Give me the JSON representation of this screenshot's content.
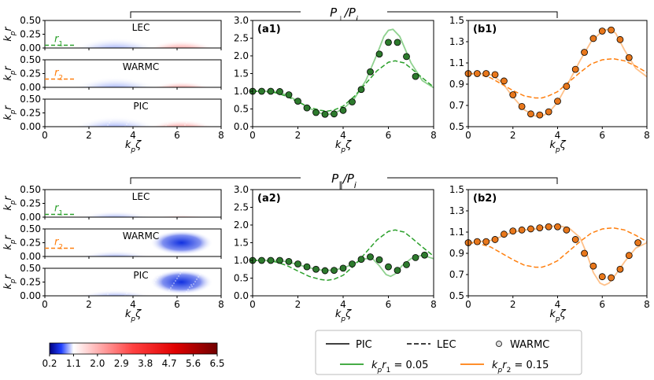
{
  "header_top": {
    "main": "P",
    "sub": "⊥",
    "den": "/P",
    "densub": "i"
  },
  "header_bottom": {
    "main": "P",
    "sub": "∥",
    "den": "/P",
    "densub": "i"
  },
  "heatmap_labels": {
    "lec": "LEC",
    "warmc": "WARMC",
    "pic": "PIC",
    "r1": "r",
    "r1sub": "1",
    "r2": "r",
    "r2sub": "2",
    "ylabel_main": "k",
    "ylabel_sub": "p",
    "ylabel_var": "r",
    "xlabel_main": "k",
    "xlabel_sub": "p",
    "xlabel_var": "ζ"
  },
  "colorbar": {
    "ticks": [
      "0.2",
      "1.1",
      "2.0",
      "2.9",
      "3.8",
      "4.7",
      "5.6",
      "6.5"
    ],
    "min": 0.2,
    "max": 6.5,
    "white_at": 1.1
  },
  "legend": {
    "pic": "PIC",
    "lec": "LEC",
    "warmc": "WARMC",
    "r1_label": "r",
    "r1_sub": "1",
    "r1_value": " = 0.05",
    "r2_label": "r",
    "r2_sub": "2",
    "r2_value": " = 0.15",
    "kp": "k",
    "kp_sub": "p"
  },
  "colors": {
    "green": "#2ca02c",
    "green_light": "#8fd18f",
    "orange": "#ff7f0e",
    "orange_light": "#ffc18a",
    "marker_green": "#2d7a2d",
    "marker_orange": "#e8771b"
  },
  "chart_data": [
    {
      "id": "a1",
      "type": "line",
      "title": "(a1)",
      "xlabel": "kpζ",
      "ylabel": "",
      "xlim": [
        0,
        8
      ],
      "ylim": [
        0.0,
        3.0
      ],
      "xticks": [
        0,
        2,
        4,
        6,
        8
      ],
      "yticks": [
        0.0,
        0.5,
        1.0,
        1.5,
        2.0,
        2.5,
        3.0
      ],
      "ytick_labels": [
        "0.0",
        "0.5",
        "1.0",
        "1.5",
        "2.0",
        "2.5",
        "3.0"
      ],
      "series": [
        {
          "name": "PIC",
          "style": "solid",
          "color": "#8fd18f",
          "x": [
            0,
            0.5,
            1,
            1.5,
            2,
            2.5,
            3,
            3.3,
            3.6,
            4,
            4.5,
            5,
            5.5,
            5.8,
            6,
            6.2,
            6.5,
            7,
            7.5,
            8
          ],
          "y": [
            1.0,
            1.0,
            0.99,
            0.9,
            0.72,
            0.52,
            0.38,
            0.34,
            0.38,
            0.5,
            0.8,
            1.3,
            2.05,
            2.55,
            2.72,
            2.75,
            2.55,
            1.8,
            1.3,
            1.1
          ]
        },
        {
          "name": "LEC",
          "style": "dashed",
          "color": "#2ca02c",
          "x": [
            0,
            0.5,
            1,
            1.5,
            2,
            2.5,
            3,
            3.3,
            3.6,
            4,
            4.5,
            5,
            5.5,
            6,
            6.3,
            6.7,
            7,
            7.5,
            8
          ],
          "y": [
            1.0,
            0.99,
            0.96,
            0.86,
            0.7,
            0.55,
            0.46,
            0.44,
            0.47,
            0.58,
            0.86,
            1.22,
            1.58,
            1.82,
            1.86,
            1.8,
            1.65,
            1.38,
            1.12
          ]
        },
        {
          "name": "WARMC",
          "style": "markers",
          "color": "#2d7a2d",
          "x": [
            0,
            0.4,
            0.8,
            1.2,
            1.6,
            2.0,
            2.4,
            2.8,
            3.2,
            3.6,
            4.0,
            4.4,
            4.8,
            5.2,
            5.6,
            6.0,
            6.4,
            6.8,
            7.2
          ],
          "y": [
            1.0,
            1.0,
            1.0,
            0.99,
            0.9,
            0.72,
            0.53,
            0.4,
            0.35,
            0.36,
            0.46,
            0.7,
            1.05,
            1.55,
            2.05,
            2.38,
            2.38,
            1.98,
            1.42
          ]
        }
      ]
    },
    {
      "id": "b1",
      "type": "line",
      "title": "(b1)",
      "xlabel": "kpζ",
      "ylabel": "",
      "xlim": [
        0,
        8
      ],
      "ylim": [
        0.5,
        1.5
      ],
      "xticks": [
        0,
        2,
        4,
        6,
        8
      ],
      "yticks": [
        0.5,
        0.7,
        0.9,
        1.1,
        1.3,
        1.5
      ],
      "ytick_labels": [
        "0.5",
        "0.7",
        "0.9",
        "1.1",
        "1.3",
        "1.5"
      ],
      "series": [
        {
          "name": "PIC",
          "style": "solid",
          "color": "#ffc18a",
          "x": [
            0,
            0.5,
            1,
            1.5,
            2,
            2.5,
            3,
            3.3,
            3.6,
            4,
            4.5,
            5,
            5.5,
            6,
            6.3,
            6.6,
            7,
            7.5,
            8
          ],
          "y": [
            1.0,
            1.0,
            0.99,
            0.92,
            0.78,
            0.66,
            0.6,
            0.6,
            0.63,
            0.73,
            0.92,
            1.12,
            1.3,
            1.4,
            1.42,
            1.38,
            1.22,
            1.05,
            0.97
          ]
        },
        {
          "name": "LEC",
          "style": "dashed",
          "color": "#ff7f0e",
          "x": [
            0,
            0.5,
            1,
            1.5,
            2,
            2.5,
            3,
            3.3,
            3.6,
            4,
            4.5,
            5,
            5.5,
            6,
            6.5,
            7,
            7.5,
            8
          ],
          "y": [
            1.0,
            0.99,
            0.96,
            0.9,
            0.84,
            0.79,
            0.77,
            0.77,
            0.79,
            0.83,
            0.92,
            1.01,
            1.09,
            1.13,
            1.14,
            1.12,
            1.07,
            1.01
          ]
        },
        {
          "name": "WARMC",
          "style": "markers",
          "color": "#e8771b",
          "x": [
            0,
            0.4,
            0.8,
            1.2,
            1.6,
            2.0,
            2.4,
            2.8,
            3.2,
            3.6,
            4.0,
            4.4,
            4.8,
            5.2,
            5.6,
            6.0,
            6.4,
            6.8,
            7.2
          ],
          "y": [
            1.0,
            1.0,
            1.0,
            0.99,
            0.93,
            0.8,
            0.69,
            0.62,
            0.61,
            0.64,
            0.74,
            0.88,
            1.04,
            1.2,
            1.33,
            1.4,
            1.41,
            1.32,
            1.15
          ]
        }
      ]
    },
    {
      "id": "a2",
      "type": "line",
      "title": "(a2)",
      "xlabel": "kpζ",
      "ylabel": "",
      "xlim": [
        0,
        8
      ],
      "ylim": [
        0.0,
        3.0
      ],
      "xticks": [
        0,
        2,
        4,
        6,
        8
      ],
      "yticks": [
        0.0,
        0.5,
        1.0,
        1.5,
        2.0,
        2.5,
        3.0
      ],
      "ytick_labels": [
        "0.0",
        "0.5",
        "1.0",
        "1.5",
        "2.0",
        "2.5",
        "3.0"
      ],
      "series": [
        {
          "name": "PIC",
          "style": "solid",
          "color": "#8fd18f",
          "x": [
            0,
            0.5,
            1,
            1.5,
            2,
            2.5,
            3,
            3.5,
            4,
            4.5,
            5,
            5.3,
            5.6,
            5.9,
            6.1,
            6.3,
            6.6,
            7,
            7.5,
            8
          ],
          "y": [
            1.0,
            1.0,
            1.0,
            0.97,
            0.88,
            0.79,
            0.73,
            0.72,
            0.78,
            0.92,
            1.05,
            1.05,
            0.85,
            0.6,
            0.55,
            0.62,
            0.85,
            1.05,
            1.15,
            1.05
          ]
        },
        {
          "name": "LEC",
          "style": "dashed",
          "color": "#2ca02c",
          "x": [
            0,
            0.5,
            1,
            1.5,
            2,
            2.5,
            3,
            3.3,
            3.6,
            4,
            4.5,
            5,
            5.5,
            6,
            6.3,
            6.7,
            7,
            7.5,
            8
          ],
          "y": [
            1.0,
            0.99,
            0.96,
            0.86,
            0.7,
            0.55,
            0.46,
            0.44,
            0.47,
            0.58,
            0.86,
            1.22,
            1.58,
            1.82,
            1.86,
            1.8,
            1.65,
            1.38,
            1.12
          ]
        },
        {
          "name": "WARMC",
          "style": "markers",
          "color": "#2d7a2d",
          "x": [
            0,
            0.4,
            0.8,
            1.2,
            1.6,
            2.0,
            2.4,
            2.8,
            3.2,
            3.6,
            4.0,
            4.4,
            4.8,
            5.2,
            5.6,
            6.0,
            6.4,
            6.8,
            7.2,
            7.6
          ],
          "y": [
            1.0,
            1.0,
            1.0,
            1.0,
            0.97,
            0.9,
            0.82,
            0.75,
            0.71,
            0.72,
            0.78,
            0.9,
            1.03,
            1.1,
            1.02,
            0.82,
            0.72,
            0.88,
            1.08,
            1.15
          ]
        }
      ]
    },
    {
      "id": "b2",
      "type": "line",
      "title": "(b2)",
      "xlabel": "kpζ",
      "ylabel": "",
      "xlim": [
        0,
        8
      ],
      "ylim": [
        0.5,
        1.5
      ],
      "xticks": [
        0,
        2,
        4,
        6,
        8
      ],
      "yticks": [
        0.5,
        0.7,
        0.9,
        1.1,
        1.3,
        1.5
      ],
      "ytick_labels": [
        "0.5",
        "0.7",
        "0.9",
        "1.1",
        "1.3",
        "1.5"
      ],
      "series": [
        {
          "name": "PIC",
          "style": "solid",
          "color": "#ffc18a",
          "x": [
            0,
            0.5,
            1,
            1.5,
            2,
            2.5,
            3,
            3.5,
            4,
            4.5,
            5,
            5.3,
            5.6,
            5.9,
            6.1,
            6.3,
            6.6,
            7,
            7.5,
            8
          ],
          "y": [
            1.0,
            1.01,
            1.02,
            1.06,
            1.1,
            1.12,
            1.13,
            1.15,
            1.16,
            1.14,
            1.05,
            0.9,
            0.72,
            0.62,
            0.6,
            0.62,
            0.7,
            0.82,
            0.95,
            1.0
          ]
        },
        {
          "name": "LEC",
          "style": "dashed",
          "color": "#ff7f0e",
          "x": [
            0,
            0.5,
            1,
            1.5,
            2,
            2.5,
            3,
            3.3,
            3.6,
            4,
            4.5,
            5,
            5.5,
            6,
            6.5,
            7,
            7.5,
            8
          ],
          "y": [
            1.0,
            0.99,
            0.96,
            0.9,
            0.84,
            0.79,
            0.77,
            0.77,
            0.79,
            0.83,
            0.92,
            1.01,
            1.09,
            1.13,
            1.14,
            1.12,
            1.07,
            1.01
          ]
        },
        {
          "name": "WARMC",
          "style": "markers",
          "color": "#e8771b",
          "x": [
            0,
            0.4,
            0.8,
            1.2,
            1.6,
            2.0,
            2.4,
            2.8,
            3.2,
            3.6,
            4.0,
            4.4,
            4.8,
            5.2,
            5.6,
            6.0,
            6.4,
            6.8,
            7.2,
            7.6
          ],
          "y": [
            1.0,
            1.01,
            1.01,
            1.03,
            1.08,
            1.11,
            1.12,
            1.13,
            1.14,
            1.15,
            1.15,
            1.12,
            1.03,
            0.9,
            0.78,
            0.68,
            0.67,
            0.75,
            0.88,
            1.0
          ]
        }
      ]
    },
    {
      "id": "heatmaps",
      "type": "heatmap",
      "xlim": [
        0,
        8
      ],
      "ylim": [
        0.0,
        0.5
      ],
      "xticks": [
        0,
        2,
        4,
        6,
        8
      ],
      "yticks": [
        0.0,
        0.25,
        0.5
      ],
      "ytick_labels": [
        "0.00",
        "0.25",
        "0.50"
      ],
      "r1_position": 0.05,
      "r2_position": 0.15,
      "panels": [
        {
          "name": "LEC",
          "component": "perp",
          "blue_center": 3.2,
          "red_center": 6.2,
          "red_strength": 1.0
        },
        {
          "name": "WARMC",
          "component": "perp",
          "blue_center": 3.2,
          "red_center": 6.2,
          "red_strength": 0.7
        },
        {
          "name": "PIC",
          "component": "perp",
          "blue_center": 3.2,
          "red_center": 6.2,
          "red_strength": 0.9
        },
        {
          "name": "LEC",
          "component": "par",
          "blue_center": 3.2,
          "red_center": 6.2,
          "red_strength": 0.3
        },
        {
          "name": "WARMC",
          "component": "par",
          "blue_center": 3.2,
          "red_center": 6.2,
          "red_strength": -0.6
        },
        {
          "name": "PIC",
          "component": "par",
          "blue_center": 3.2,
          "red_center": 6.2,
          "red_strength": -0.6
        }
      ]
    }
  ]
}
